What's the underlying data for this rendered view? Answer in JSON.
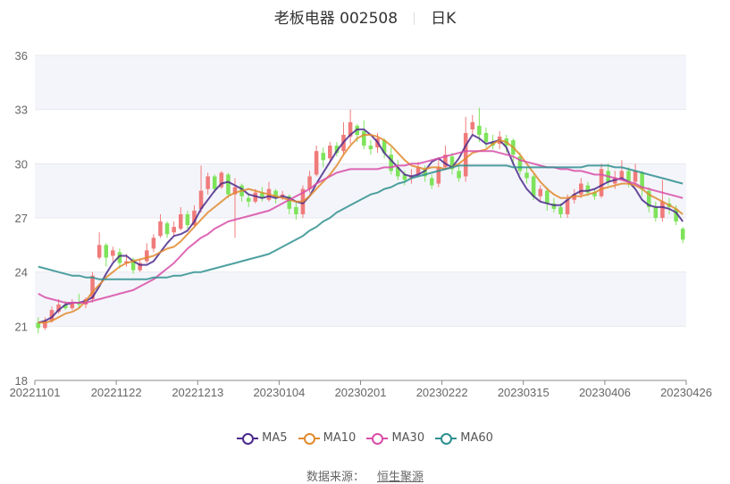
{
  "title": {
    "name": "老板电器 002508",
    "period": "日K"
  },
  "legend": [
    {
      "label": "MA5",
      "color": "#4b2a8c"
    },
    {
      "label": "MA10",
      "color": "#e08a2e"
    },
    {
      "label": "MA30",
      "color": "#d84ea8"
    },
    {
      "label": "MA60",
      "color": "#2f8f8f"
    }
  ],
  "source": {
    "label": "数据来源：",
    "name": "恒生聚源"
  },
  "colors": {
    "up": "#f07b7b",
    "down": "#7ee35a",
    "band": "#f4f5fa",
    "grid": "#e8e9ef",
    "axis": "#888"
  },
  "chart_data": {
    "type": "candlestick",
    "title": "老板电器 002508 日K",
    "xlabel": "",
    "ylabel": "",
    "ylim": [
      18,
      36
    ],
    "yticks": [
      18,
      21,
      24,
      27,
      30,
      33,
      36
    ],
    "xticks": [
      "20221101",
      "20221122",
      "20221213",
      "20230104",
      "20230201",
      "20230222",
      "20230315",
      "20230406",
      "20230426"
    ],
    "legend_position": "bottom",
    "series": [
      {
        "name": "MA5",
        "values": [
          21.2,
          21.3,
          21.5,
          21.9,
          22.2,
          22.3,
          22.3,
          22.4,
          22.6,
          23.2,
          23.9,
          24.5,
          24.9,
          24.9,
          24.6,
          24.4,
          24.4,
          24.6,
          25.1,
          25.6,
          26.0,
          26.1,
          26.3,
          26.8,
          27.5,
          28.0,
          28.5,
          28.9,
          29.0,
          28.8,
          28.6,
          28.3,
          28.2,
          28.1,
          28.2,
          28.1,
          28.2,
          28.1,
          27.9,
          27.8,
          28.2,
          28.9,
          29.5,
          30.1,
          30.7,
          31.2,
          31.6,
          31.9,
          31.9,
          31.6,
          31.2,
          30.6,
          30.2,
          29.8,
          29.4,
          29.3,
          29.4,
          29.6,
          30.1,
          30.3,
          30.0,
          29.8,
          30.3,
          31.0,
          31.6,
          31.4,
          31.1,
          31.2,
          31.3,
          30.9,
          30.0,
          29.2,
          28.6,
          28.2,
          27.9,
          27.8,
          27.7,
          27.7,
          28.0,
          28.3,
          28.5,
          28.5,
          28.6,
          28.8,
          29.0,
          29.1,
          29.2,
          29.0,
          28.6,
          28.0,
          27.7,
          27.6,
          27.6,
          27.5,
          27.3,
          26.8
        ]
      },
      {
        "name": "MA10",
        "values": [
          21.2,
          21.2,
          21.3,
          21.5,
          21.7,
          21.8,
          22.0,
          22.4,
          22.9,
          23.3,
          23.7,
          24.0,
          24.3,
          24.5,
          24.6,
          24.7,
          24.8,
          24.9,
          25.1,
          25.3,
          25.4,
          25.7,
          26.1,
          26.5,
          26.9,
          27.3,
          27.6,
          27.9,
          28.2,
          28.4,
          28.5,
          28.6,
          28.5,
          28.4,
          28.3,
          28.2,
          28.1,
          28.0,
          27.9,
          27.9,
          28.2,
          28.6,
          29.0,
          29.4,
          29.9,
          30.5,
          31.0,
          31.4,
          31.6,
          31.6,
          31.5,
          31.3,
          31.0,
          30.6,
          30.2,
          29.9,
          29.8,
          29.7,
          29.8,
          29.8,
          29.7,
          29.8,
          30.0,
          30.3,
          30.6,
          30.7,
          30.8,
          31.1,
          31.3,
          31.2,
          30.9,
          30.5,
          30.0,
          29.5,
          29.0,
          28.6,
          28.3,
          28.1,
          28.1,
          28.2,
          28.2,
          28.3,
          28.4,
          28.6,
          28.7,
          28.8,
          28.9,
          28.9,
          28.8,
          28.6,
          28.3,
          28.1,
          27.9,
          27.7,
          27.5,
          27.2
        ]
      },
      {
        "name": "MA30",
        "values": [
          22.8,
          22.6,
          22.5,
          22.4,
          22.3,
          22.3,
          22.3,
          22.3,
          22.4,
          22.5,
          22.6,
          22.7,
          22.8,
          22.9,
          23.0,
          23.2,
          23.4,
          23.6,
          23.9,
          24.2,
          24.5,
          24.9,
          25.3,
          25.6,
          25.9,
          26.1,
          26.4,
          26.6,
          26.8,
          26.9,
          27.0,
          27.1,
          27.2,
          27.3,
          27.4,
          27.6,
          27.8,
          28.0,
          28.2,
          28.4,
          28.6,
          28.9,
          29.1,
          29.3,
          29.5,
          29.6,
          29.7,
          29.7,
          29.7,
          29.7,
          29.7,
          29.8,
          29.8,
          29.9,
          29.9,
          30.0,
          30.0,
          30.1,
          30.2,
          30.3,
          30.4,
          30.5,
          30.6,
          30.7,
          30.7,
          30.7,
          30.7,
          30.7,
          30.6,
          30.5,
          30.4,
          30.2,
          30.1,
          30.0,
          29.9,
          29.8,
          29.8,
          29.7,
          29.7,
          29.6,
          29.6,
          29.5,
          29.4,
          29.4,
          29.3,
          29.2,
          29.1,
          29.0,
          28.9,
          28.7,
          28.6,
          28.5,
          28.4,
          28.3,
          28.2,
          28.1
        ]
      },
      {
        "name": "MA60",
        "values": [
          24.3,
          24.2,
          24.1,
          24.0,
          23.9,
          23.8,
          23.8,
          23.7,
          23.7,
          23.6,
          23.6,
          23.6,
          23.6,
          23.6,
          23.6,
          23.6,
          23.6,
          23.7,
          23.7,
          23.7,
          23.8,
          23.8,
          23.9,
          24.0,
          24.0,
          24.1,
          24.2,
          24.3,
          24.4,
          24.5,
          24.6,
          24.7,
          24.8,
          24.9,
          25.0,
          25.2,
          25.4,
          25.6,
          25.8,
          26.0,
          26.3,
          26.5,
          26.8,
          27.0,
          27.3,
          27.5,
          27.7,
          27.9,
          28.1,
          28.3,
          28.4,
          28.6,
          28.7,
          28.9,
          29.0,
          29.2,
          29.3,
          29.4,
          29.5,
          29.6,
          29.7,
          29.8,
          29.9,
          29.9,
          29.9,
          29.9,
          29.9,
          29.9,
          29.9,
          29.9,
          29.8,
          29.8,
          29.8,
          29.8,
          29.8,
          29.8,
          29.8,
          29.8,
          29.8,
          29.8,
          29.8,
          29.9,
          29.9,
          29.9,
          29.9,
          29.8,
          29.8,
          29.7,
          29.6,
          29.5,
          29.4,
          29.3,
          29.2,
          29.1,
          29.0,
          28.9
        ]
      }
    ],
    "candles": [
      [
        21.2,
        20.9,
        21.5,
        20.6
      ],
      [
        20.9,
        21.3,
        21.5,
        20.8
      ],
      [
        21.3,
        21.9,
        22.1,
        21.2
      ],
      [
        21.8,
        22.2,
        22.5,
        21.7
      ],
      [
        22.2,
        22.0,
        22.4,
        21.9
      ],
      [
        22.0,
        22.3,
        22.5,
        21.9
      ],
      [
        22.3,
        22.2,
        22.8,
        22.0
      ],
      [
        22.2,
        22.5,
        22.6,
        22.0
      ],
      [
        22.5,
        23.8,
        24.0,
        22.3
      ],
      [
        24.8,
        25.5,
        26.2,
        24.7
      ],
      [
        25.5,
        24.8,
        25.6,
        24.3
      ],
      [
        24.9,
        25.2,
        25.4,
        24.6
      ],
      [
        25.1,
        24.5,
        25.3,
        24.2
      ],
      [
        24.5,
        24.6,
        25.0,
        24.3
      ],
      [
        24.7,
        24.1,
        24.8,
        23.9
      ],
      [
        24.1,
        24.5,
        24.7,
        24.0
      ],
      [
        24.6,
        25.2,
        25.6,
        24.5
      ],
      [
        25.3,
        25.9,
        26.1,
        25.1
      ],
      [
        26.0,
        26.8,
        27.2,
        25.9
      ],
      [
        26.7,
        26.1,
        26.8,
        25.9
      ],
      [
        26.2,
        26.5,
        26.8,
        26.0
      ],
      [
        26.4,
        27.2,
        27.6,
        26.3
      ],
      [
        27.2,
        26.6,
        27.4,
        26.4
      ],
      [
        26.6,
        27.4,
        27.7,
        26.5
      ],
      [
        27.5,
        28.5,
        29.9,
        27.3
      ],
      [
        28.6,
        29.3,
        29.5,
        28.3
      ],
      [
        29.3,
        28.6,
        29.4,
        28.4
      ],
      [
        28.7,
        29.5,
        29.6,
        28.6
      ],
      [
        29.4,
        28.3,
        29.5,
        28.1
      ],
      [
        28.3,
        28.7,
        29.2,
        25.9
      ],
      [
        28.8,
        28.2,
        28.9,
        27.9
      ],
      [
        28.1,
        27.9,
        28.3,
        27.6
      ],
      [
        27.9,
        28.4,
        28.6,
        27.8
      ],
      [
        28.4,
        28.1,
        28.7,
        27.9
      ],
      [
        28.0,
        28.6,
        29.0,
        27.9
      ],
      [
        28.5,
        28.1,
        28.6,
        27.8
      ],
      [
        28.2,
        28.3,
        28.5,
        28.0
      ],
      [
        28.2,
        27.5,
        28.3,
        27.2
      ],
      [
        27.6,
        27.2,
        27.9,
        26.9
      ],
      [
        27.2,
        28.6,
        28.8,
        27.0
      ],
      [
        28.6,
        29.3,
        29.6,
        28.4
      ],
      [
        29.4,
        30.7,
        31.0,
        29.3
      ],
      [
        30.6,
        30.2,
        30.9,
        29.8
      ],
      [
        30.3,
        31.0,
        31.2,
        30.1
      ],
      [
        31.0,
        30.6,
        31.2,
        30.4
      ],
      [
        30.7,
        31.6,
        32.3,
        30.5
      ],
      [
        31.5,
        32.3,
        33.0,
        31.1
      ],
      [
        32.1,
        31.6,
        32.2,
        31.2
      ],
      [
        31.8,
        31.0,
        32.4,
        30.8
      ],
      [
        31.0,
        30.8,
        31.3,
        30.5
      ],
      [
        30.9,
        31.4,
        31.7,
        30.6
      ],
      [
        31.3,
        30.6,
        31.4,
        30.3
      ],
      [
        30.5,
        29.6,
        30.9,
        29.4
      ],
      [
        29.8,
        29.3,
        30.2,
        29.1
      ],
      [
        29.4,
        29.1,
        29.6,
        28.8
      ],
      [
        29.2,
        29.3,
        29.7,
        28.9
      ],
      [
        29.4,
        29.8,
        30.1,
        29.3
      ],
      [
        29.7,
        29.3,
        29.9,
        29.0
      ],
      [
        29.2,
        28.8,
        29.4,
        28.6
      ],
      [
        28.9,
        29.8,
        30.3,
        28.7
      ],
      [
        29.8,
        30.5,
        31.0,
        29.7
      ],
      [
        30.4,
        29.7,
        30.6,
        29.4
      ],
      [
        29.6,
        29.2,
        29.9,
        29.0
      ],
      [
        29.3,
        31.7,
        32.6,
        29.0
      ],
      [
        31.9,
        32.3,
        32.7,
        31.6
      ],
      [
        32.1,
        31.6,
        33.1,
        31.2
      ],
      [
        31.7,
        31.2,
        32.0,
        30.9
      ],
      [
        31.2,
        31.0,
        31.6,
        30.8
      ],
      [
        31.1,
        31.5,
        31.8,
        30.8
      ],
      [
        31.4,
        31.0,
        31.6,
        30.6
      ],
      [
        31.3,
        30.5,
        31.4,
        30.0
      ],
      [
        30.4,
        29.6,
        30.6,
        29.4
      ],
      [
        29.5,
        29.2,
        29.8,
        28.9
      ],
      [
        29.3,
        28.2,
        29.4,
        28.0
      ],
      [
        28.2,
        28.6,
        28.8,
        27.9
      ],
      [
        28.5,
        27.8,
        28.7,
        27.4
      ],
      [
        27.8,
        27.5,
        28.1,
        27.3
      ],
      [
        27.6,
        27.2,
        27.8,
        27.0
      ],
      [
        27.2,
        28.0,
        28.3,
        27.0
      ],
      [
        28.0,
        28.3,
        28.6,
        27.8
      ],
      [
        28.3,
        28.9,
        29.2,
        28.1
      ],
      [
        28.8,
        28.4,
        29.0,
        28.2
      ],
      [
        28.4,
        28.2,
        28.6,
        28.0
      ],
      [
        28.2,
        29.7,
        30.0,
        28.1
      ],
      [
        29.6,
        29.0,
        30.0,
        28.8
      ],
      [
        28.9,
        29.2,
        29.6,
        28.6
      ],
      [
        29.2,
        29.6,
        30.2,
        29.1
      ],
      [
        29.6,
        29.0,
        29.8,
        28.7
      ],
      [
        29.0,
        29.6,
        30.0,
        28.8
      ],
      [
        29.5,
        28.6,
        29.6,
        28.2
      ],
      [
        28.5,
        27.6,
        28.7,
        27.3
      ],
      [
        27.6,
        27.0,
        27.9,
        26.8
      ],
      [
        27.0,
        27.9,
        29.1,
        26.8
      ],
      [
        27.8,
        27.6,
        28.1,
        27.2
      ],
      [
        27.5,
        26.8,
        27.7,
        26.6
      ],
      [
        26.4,
        25.8,
        26.5,
        25.6
      ]
    ]
  }
}
